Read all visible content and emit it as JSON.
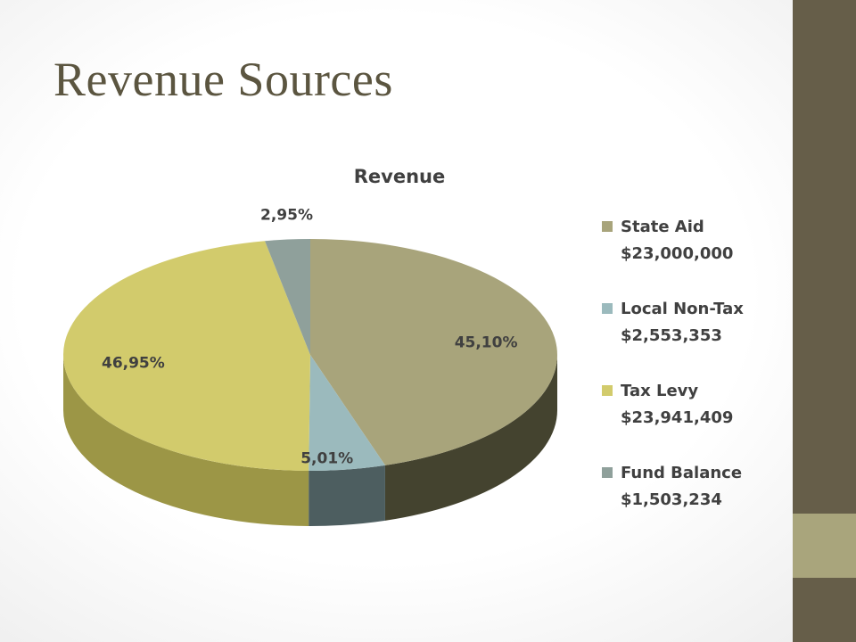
{
  "slide": {
    "title": "Revenue Sources"
  },
  "colors": {
    "sidebar_dark": "#665e49",
    "sidebar_light": "#a9a57c",
    "title_text": "#5b5540"
  },
  "chart_data": {
    "type": "pie",
    "style": "3d",
    "title": "Revenue",
    "legend_position": "right",
    "slices": [
      {
        "legend_line1": "State Aid",
        "legend_line2": "$23,000,000",
        "value": 23000000,
        "percent_label": "45,10%",
        "color": "#a8a47b",
        "dark": "#44432f"
      },
      {
        "legend_line1": "Local Non-Tax",
        "legend_line2": "$2,553,353",
        "value": 2553353,
        "percent_label": "5,01%",
        "color": "#9bbabd",
        "dark": "#4d5e60"
      },
      {
        "legend_line1": "Tax Levy",
        "legend_line2": "$23,941,409",
        "value": 23941409,
        "percent_label": "46,95%",
        "color": "#d2cb6c",
        "dark": "#9c9646"
      },
      {
        "legend_line1": "Fund Balance",
        "legend_line2": "$1,503,234",
        "value": 1503234,
        "percent_label": "2,95%",
        "color": "#8fa09b",
        "dark": "#56625f"
      }
    ]
  }
}
